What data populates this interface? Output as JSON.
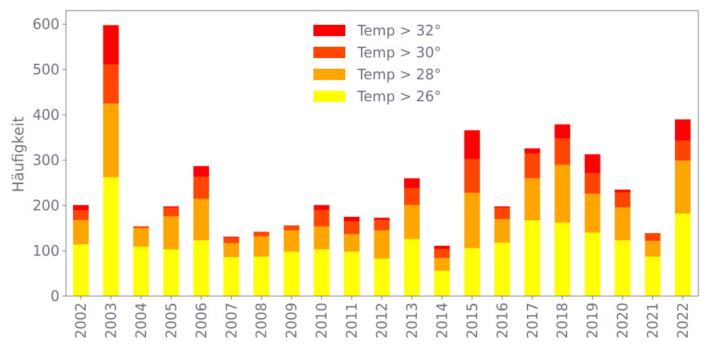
{
  "chart_data": {
    "type": "bar",
    "stacked": true,
    "title": "",
    "xlabel": "",
    "ylabel": "Häufigkeit",
    "ylim": [
      0,
      630
    ],
    "yticks": [
      0,
      100,
      200,
      300,
      400,
      500,
      600
    ],
    "grid": false,
    "legend_position": "top-center",
    "categories": [
      "2002",
      "2003",
      "2004",
      "2005",
      "2006",
      "2007",
      "2008",
      "2009",
      "2010",
      "2011",
      "2012",
      "2013",
      "2014",
      "2015",
      "2016",
      "2017",
      "2018",
      "2019",
      "2020",
      "2021",
      "2022"
    ],
    "series": [
      {
        "name": "Temp > 26°",
        "color": "#ffff00",
        "values": [
          114,
          262,
          109,
          103,
          123,
          86,
          87,
          98,
          103,
          98,
          83,
          126,
          56,
          106,
          118,
          167,
          162,
          140,
          123,
          87,
          182
        ]
      },
      {
        "name": "Temp > 28°",
        "color": "#ffa500",
        "values": [
          54,
          163,
          41,
          73,
          92,
          31,
          45,
          47,
          51,
          39,
          62,
          75,
          28,
          122,
          52,
          93,
          128,
          86,
          73,
          35,
          117
        ]
      },
      {
        "name": "Temp > 30°",
        "color": "#ff4500",
        "values": [
          21,
          86,
          4,
          19,
          48,
          12,
          10,
          11,
          36,
          28,
          23,
          37,
          20,
          74,
          25,
          55,
          58,
          45,
          33,
          17,
          44
        ]
      },
      {
        "name": "Temp > 32°",
        "color": "#ff0000",
        "values": [
          12,
          87,
          0,
          3,
          24,
          2,
          0,
          0,
          11,
          10,
          5,
          22,
          7,
          64,
          3,
          11,
          31,
          42,
          6,
          0,
          47
        ]
      }
    ]
  }
}
